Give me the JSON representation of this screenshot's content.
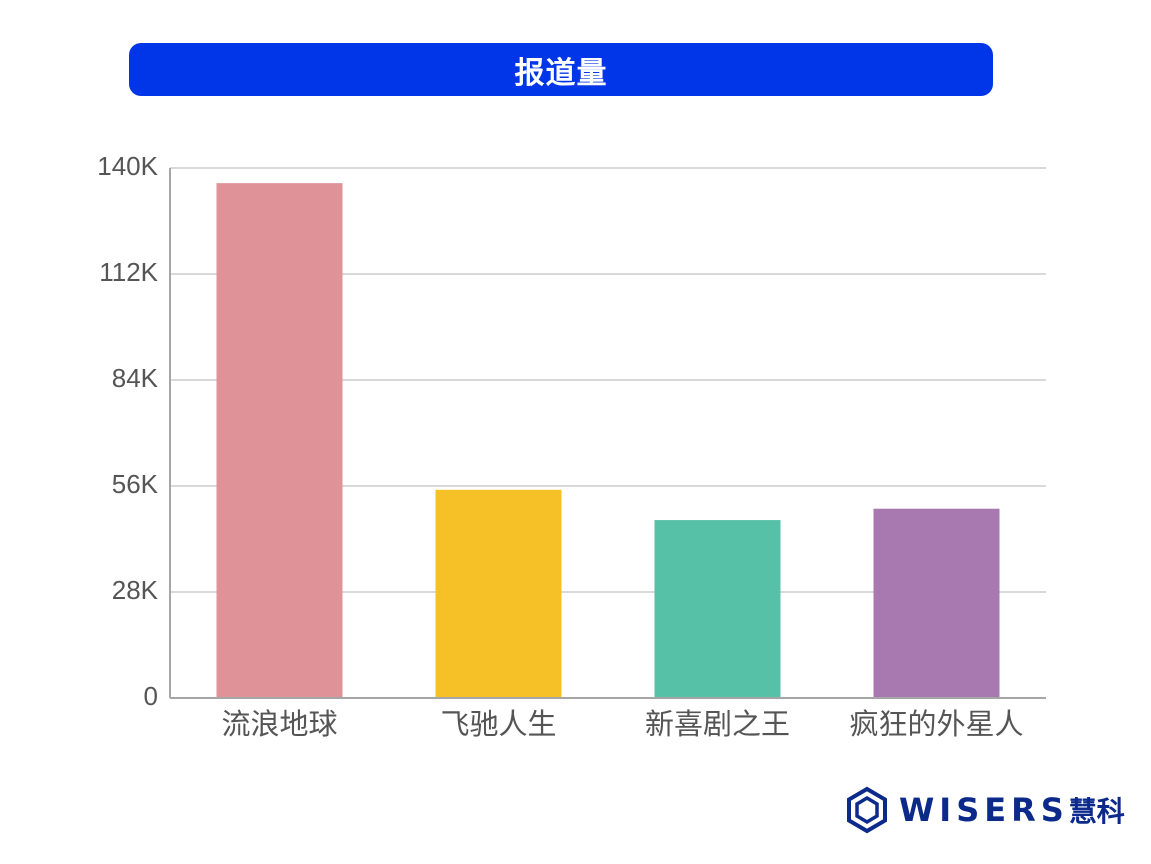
{
  "chart_data": {
    "type": "bar",
    "title": "报道量",
    "categories": [
      "流浪地球",
      "飞驰人生",
      "新喜剧之王",
      "疯狂的外星人"
    ],
    "values": [
      136000,
      55000,
      47000,
      50000
    ],
    "colors": [
      "#df9399",
      "#f5c127",
      "#56c1a6",
      "#a878b0"
    ],
    "ylim": [
      0,
      140000
    ],
    "yticks": [
      0,
      28000,
      56000,
      84000,
      112000,
      140000
    ],
    "ytick_labels": [
      "0",
      "28K",
      "56K",
      "84K",
      "112K",
      "140K"
    ],
    "grid": true
  },
  "logo": {
    "wordmark": "WISERS",
    "cn": "慧科",
    "color": "#0b2a8a"
  }
}
